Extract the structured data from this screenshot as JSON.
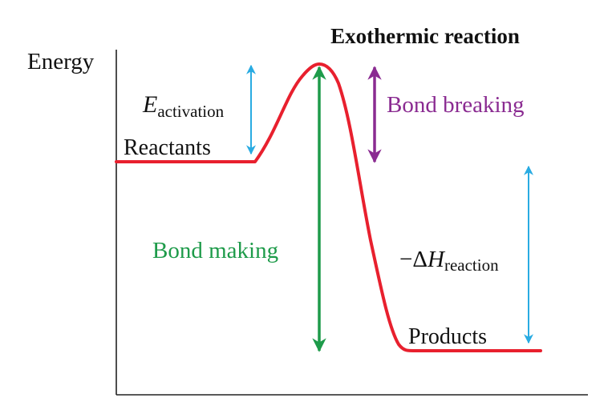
{
  "title": "Exothermic reaction",
  "axis": {
    "y_label": "Energy"
  },
  "labels": {
    "reactants": "Reactants",
    "products": "Products",
    "activation_symbol": "E",
    "activation_subscript": "activation",
    "bond_breaking": "Bond breaking",
    "bond_making": "Bond making",
    "enthalpy_prefix": "−Δ",
    "enthalpy_symbol": "H",
    "enthalpy_subscript": "reaction"
  },
  "colors": {
    "curve": "#e8202e",
    "activation_arrow": "#29abe2",
    "enthalpy_arrow": "#29abe2",
    "bond_breaking": "#8a2b91",
    "bond_making": "#1e9b4a",
    "axis": "#222222",
    "text": "#111111"
  }
}
